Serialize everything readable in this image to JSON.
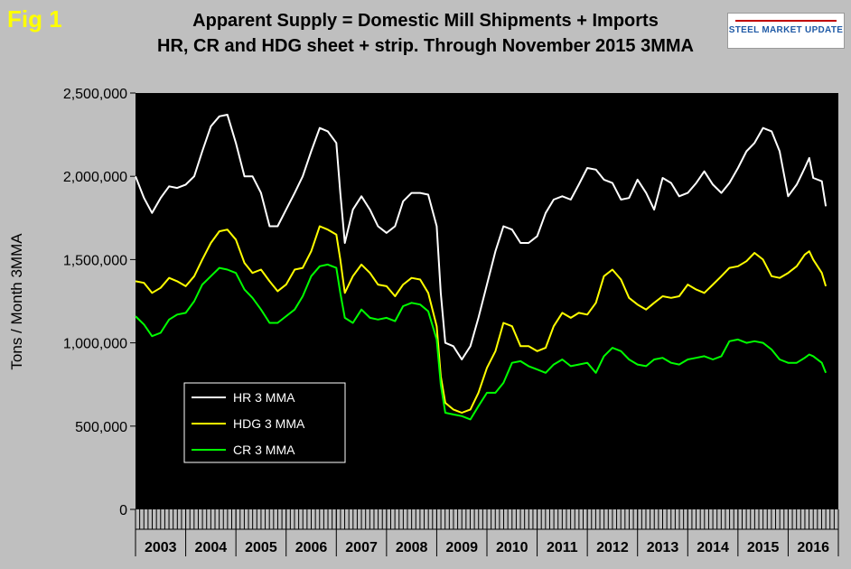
{
  "fig_label": "Fig 1",
  "title_line1": "Apparent Supply = Domestic Mill Shipments + Imports",
  "title_line2": "HR, CR and HDG sheet + strip. Through November 2015 3MMA",
  "logo_text": "STEEL MARKET UPDATE",
  "colors": {
    "background": "#bfbfbf",
    "plot_area": "#000000",
    "hr": "#ffffff",
    "hdg": "#ffff00",
    "cr": "#00ff00"
  },
  "chart_data": {
    "type": "line",
    "title": "Apparent Supply = Domestic Mill Shipments + Imports",
    "subtitle": "HR, CR and HDG sheet + strip. Through November 2015 3MMA",
    "ylabel": "Tons / Month 3MMA",
    "xlabel": "",
    "ylim": [
      0,
      2500000
    ],
    "yticks": [
      0,
      500000,
      1000000,
      1500000,
      2000000,
      2500000
    ],
    "ytick_labels": [
      "0",
      "500,000",
      "1,000,000",
      "1,500,000",
      "2,000,000",
      "2,500,000"
    ],
    "x_categories": [
      "2003",
      "2004",
      "2005",
      "2006",
      "2007",
      "2008",
      "2009",
      "2010",
      "2011",
      "2012",
      "2013",
      "2014",
      "2015",
      "2016"
    ],
    "x_unit": "decimal year",
    "x_range": [
      2003,
      2017
    ],
    "legend_position": "lower-left inside plot",
    "grid": false,
    "series": [
      {
        "name": "HR 3 MMA",
        "points": [
          [
            2003.0,
            2000000
          ],
          [
            2003.17,
            1870000
          ],
          [
            2003.33,
            1780000
          ],
          [
            2003.5,
            1870000
          ],
          [
            2003.67,
            1940000
          ],
          [
            2003.83,
            1930000
          ],
          [
            2004.0,
            1950000
          ],
          [
            2004.17,
            2000000
          ],
          [
            2004.33,
            2150000
          ],
          [
            2004.5,
            2300000
          ],
          [
            2004.67,
            2360000
          ],
          [
            2004.83,
            2370000
          ],
          [
            2005.0,
            2200000
          ],
          [
            2005.17,
            2000000
          ],
          [
            2005.33,
            2000000
          ],
          [
            2005.5,
            1900000
          ],
          [
            2005.67,
            1700000
          ],
          [
            2005.83,
            1700000
          ],
          [
            2006.0,
            1800000
          ],
          [
            2006.17,
            1900000
          ],
          [
            2006.33,
            2000000
          ],
          [
            2006.5,
            2150000
          ],
          [
            2006.67,
            2290000
          ],
          [
            2006.83,
            2270000
          ],
          [
            2007.0,
            2200000
          ],
          [
            2007.08,
            1900000
          ],
          [
            2007.17,
            1600000
          ],
          [
            2007.33,
            1800000
          ],
          [
            2007.5,
            1880000
          ],
          [
            2007.67,
            1800000
          ],
          [
            2007.83,
            1700000
          ],
          [
            2008.0,
            1660000
          ],
          [
            2008.17,
            1700000
          ],
          [
            2008.33,
            1850000
          ],
          [
            2008.5,
            1900000
          ],
          [
            2008.67,
            1900000
          ],
          [
            2008.83,
            1890000
          ],
          [
            2009.0,
            1700000
          ],
          [
            2009.08,
            1300000
          ],
          [
            2009.17,
            1000000
          ],
          [
            2009.33,
            980000
          ],
          [
            2009.5,
            900000
          ],
          [
            2009.67,
            980000
          ],
          [
            2009.83,
            1150000
          ],
          [
            2010.0,
            1350000
          ],
          [
            2010.17,
            1550000
          ],
          [
            2010.33,
            1700000
          ],
          [
            2010.5,
            1680000
          ],
          [
            2010.67,
            1600000
          ],
          [
            2010.83,
            1600000
          ],
          [
            2011.0,
            1640000
          ],
          [
            2011.17,
            1780000
          ],
          [
            2011.33,
            1860000
          ],
          [
            2011.5,
            1880000
          ],
          [
            2011.67,
            1860000
          ],
          [
            2011.83,
            1950000
          ],
          [
            2012.0,
            2050000
          ],
          [
            2012.17,
            2040000
          ],
          [
            2012.33,
            1980000
          ],
          [
            2012.5,
            1960000
          ],
          [
            2012.67,
            1860000
          ],
          [
            2012.83,
            1870000
          ],
          [
            2013.0,
            1980000
          ],
          [
            2013.17,
            1900000
          ],
          [
            2013.33,
            1800000
          ],
          [
            2013.5,
            1990000
          ],
          [
            2013.67,
            1960000
          ],
          [
            2013.83,
            1880000
          ],
          [
            2014.0,
            1900000
          ],
          [
            2014.17,
            1960000
          ],
          [
            2014.33,
            2030000
          ],
          [
            2014.5,
            1950000
          ],
          [
            2014.67,
            1900000
          ],
          [
            2014.83,
            1960000
          ],
          [
            2015.0,
            2050000
          ],
          [
            2015.17,
            2150000
          ],
          [
            2015.33,
            2200000
          ],
          [
            2015.5,
            2290000
          ],
          [
            2015.67,
            2270000
          ],
          [
            2015.83,
            2150000
          ],
          [
            2016.0,
            1880000
          ],
          [
            2016.17,
            1950000
          ],
          [
            2016.33,
            2050000
          ],
          [
            2016.42,
            2110000
          ],
          [
            2016.5,
            1990000
          ],
          [
            2016.67,
            1970000
          ],
          [
            2016.75,
            1820000
          ]
        ]
      },
      {
        "name": "HDG 3 MMA",
        "points": [
          [
            2003.0,
            1370000
          ],
          [
            2003.17,
            1360000
          ],
          [
            2003.33,
            1300000
          ],
          [
            2003.5,
            1330000
          ],
          [
            2003.67,
            1390000
          ],
          [
            2003.83,
            1370000
          ],
          [
            2004.0,
            1340000
          ],
          [
            2004.17,
            1400000
          ],
          [
            2004.33,
            1500000
          ],
          [
            2004.5,
            1600000
          ],
          [
            2004.67,
            1670000
          ],
          [
            2004.83,
            1680000
          ],
          [
            2005.0,
            1620000
          ],
          [
            2005.17,
            1480000
          ],
          [
            2005.33,
            1420000
          ],
          [
            2005.5,
            1440000
          ],
          [
            2005.67,
            1370000
          ],
          [
            2005.83,
            1310000
          ],
          [
            2006.0,
            1350000
          ],
          [
            2006.17,
            1440000
          ],
          [
            2006.33,
            1450000
          ],
          [
            2006.5,
            1550000
          ],
          [
            2006.67,
            1700000
          ],
          [
            2006.83,
            1680000
          ],
          [
            2007.0,
            1650000
          ],
          [
            2007.08,
            1500000
          ],
          [
            2007.17,
            1300000
          ],
          [
            2007.33,
            1400000
          ],
          [
            2007.5,
            1470000
          ],
          [
            2007.67,
            1420000
          ],
          [
            2007.83,
            1350000
          ],
          [
            2008.0,
            1340000
          ],
          [
            2008.17,
            1280000
          ],
          [
            2008.33,
            1350000
          ],
          [
            2008.5,
            1390000
          ],
          [
            2008.67,
            1380000
          ],
          [
            2008.83,
            1300000
          ],
          [
            2009.0,
            1100000
          ],
          [
            2009.08,
            800000
          ],
          [
            2009.17,
            640000
          ],
          [
            2009.33,
            600000
          ],
          [
            2009.5,
            580000
          ],
          [
            2009.67,
            600000
          ],
          [
            2009.83,
            700000
          ],
          [
            2010.0,
            850000
          ],
          [
            2010.17,
            950000
          ],
          [
            2010.33,
            1120000
          ],
          [
            2010.5,
            1100000
          ],
          [
            2010.67,
            980000
          ],
          [
            2010.83,
            980000
          ],
          [
            2011.0,
            950000
          ],
          [
            2011.17,
            970000
          ],
          [
            2011.33,
            1100000
          ],
          [
            2011.5,
            1180000
          ],
          [
            2011.67,
            1150000
          ],
          [
            2011.83,
            1180000
          ],
          [
            2012.0,
            1170000
          ],
          [
            2012.17,
            1240000
          ],
          [
            2012.33,
            1400000
          ],
          [
            2012.5,
            1440000
          ],
          [
            2012.67,
            1380000
          ],
          [
            2012.83,
            1270000
          ],
          [
            2013.0,
            1230000
          ],
          [
            2013.17,
            1200000
          ],
          [
            2013.33,
            1240000
          ],
          [
            2013.5,
            1280000
          ],
          [
            2013.67,
            1270000
          ],
          [
            2013.83,
            1280000
          ],
          [
            2014.0,
            1350000
          ],
          [
            2014.17,
            1320000
          ],
          [
            2014.33,
            1300000
          ],
          [
            2014.5,
            1350000
          ],
          [
            2014.67,
            1400000
          ],
          [
            2014.83,
            1450000
          ],
          [
            2015.0,
            1460000
          ],
          [
            2015.17,
            1490000
          ],
          [
            2015.33,
            1540000
          ],
          [
            2015.5,
            1500000
          ],
          [
            2015.67,
            1400000
          ],
          [
            2015.83,
            1390000
          ],
          [
            2016.0,
            1420000
          ],
          [
            2016.17,
            1460000
          ],
          [
            2016.33,
            1530000
          ],
          [
            2016.42,
            1550000
          ],
          [
            2016.5,
            1500000
          ],
          [
            2016.67,
            1420000
          ],
          [
            2016.75,
            1340000
          ]
        ]
      },
      {
        "name": "CR 3 MMA",
        "points": [
          [
            2003.0,
            1160000
          ],
          [
            2003.17,
            1110000
          ],
          [
            2003.33,
            1040000
          ],
          [
            2003.5,
            1060000
          ],
          [
            2003.67,
            1140000
          ],
          [
            2003.83,
            1170000
          ],
          [
            2004.0,
            1180000
          ],
          [
            2004.17,
            1250000
          ],
          [
            2004.33,
            1350000
          ],
          [
            2004.5,
            1400000
          ],
          [
            2004.67,
            1450000
          ],
          [
            2004.83,
            1440000
          ],
          [
            2005.0,
            1420000
          ],
          [
            2005.17,
            1320000
          ],
          [
            2005.33,
            1270000
          ],
          [
            2005.5,
            1200000
          ],
          [
            2005.67,
            1120000
          ],
          [
            2005.83,
            1120000
          ],
          [
            2006.0,
            1160000
          ],
          [
            2006.17,
            1200000
          ],
          [
            2006.33,
            1280000
          ],
          [
            2006.5,
            1400000
          ],
          [
            2006.67,
            1460000
          ],
          [
            2006.83,
            1470000
          ],
          [
            2007.0,
            1450000
          ],
          [
            2007.08,
            1300000
          ],
          [
            2007.17,
            1150000
          ],
          [
            2007.33,
            1120000
          ],
          [
            2007.5,
            1200000
          ],
          [
            2007.67,
            1150000
          ],
          [
            2007.83,
            1140000
          ],
          [
            2008.0,
            1150000
          ],
          [
            2008.17,
            1130000
          ],
          [
            2008.33,
            1220000
          ],
          [
            2008.5,
            1240000
          ],
          [
            2008.67,
            1230000
          ],
          [
            2008.83,
            1190000
          ],
          [
            2009.0,
            1020000
          ],
          [
            2009.08,
            750000
          ],
          [
            2009.17,
            580000
          ],
          [
            2009.33,
            570000
          ],
          [
            2009.5,
            560000
          ],
          [
            2009.67,
            540000
          ],
          [
            2009.83,
            620000
          ],
          [
            2010.0,
            700000
          ],
          [
            2010.17,
            700000
          ],
          [
            2010.33,
            760000
          ],
          [
            2010.5,
            880000
          ],
          [
            2010.67,
            890000
          ],
          [
            2010.83,
            860000
          ],
          [
            2011.0,
            840000
          ],
          [
            2011.17,
            820000
          ],
          [
            2011.33,
            870000
          ],
          [
            2011.5,
            900000
          ],
          [
            2011.67,
            860000
          ],
          [
            2011.83,
            870000
          ],
          [
            2012.0,
            880000
          ],
          [
            2012.17,
            820000
          ],
          [
            2012.33,
            920000
          ],
          [
            2012.5,
            970000
          ],
          [
            2012.67,
            950000
          ],
          [
            2012.83,
            900000
          ],
          [
            2013.0,
            870000
          ],
          [
            2013.17,
            860000
          ],
          [
            2013.33,
            900000
          ],
          [
            2013.5,
            910000
          ],
          [
            2013.67,
            880000
          ],
          [
            2013.83,
            870000
          ],
          [
            2014.0,
            900000
          ],
          [
            2014.17,
            910000
          ],
          [
            2014.33,
            920000
          ],
          [
            2014.5,
            900000
          ],
          [
            2014.67,
            920000
          ],
          [
            2014.83,
            1010000
          ],
          [
            2015.0,
            1020000
          ],
          [
            2015.17,
            1000000
          ],
          [
            2015.33,
            1010000
          ],
          [
            2015.5,
            1000000
          ],
          [
            2015.67,
            960000
          ],
          [
            2015.83,
            900000
          ],
          [
            2016.0,
            880000
          ],
          [
            2016.17,
            880000
          ],
          [
            2016.33,
            910000
          ],
          [
            2016.42,
            930000
          ],
          [
            2016.5,
            920000
          ],
          [
            2016.67,
            880000
          ],
          [
            2016.75,
            820000
          ]
        ]
      }
    ]
  }
}
